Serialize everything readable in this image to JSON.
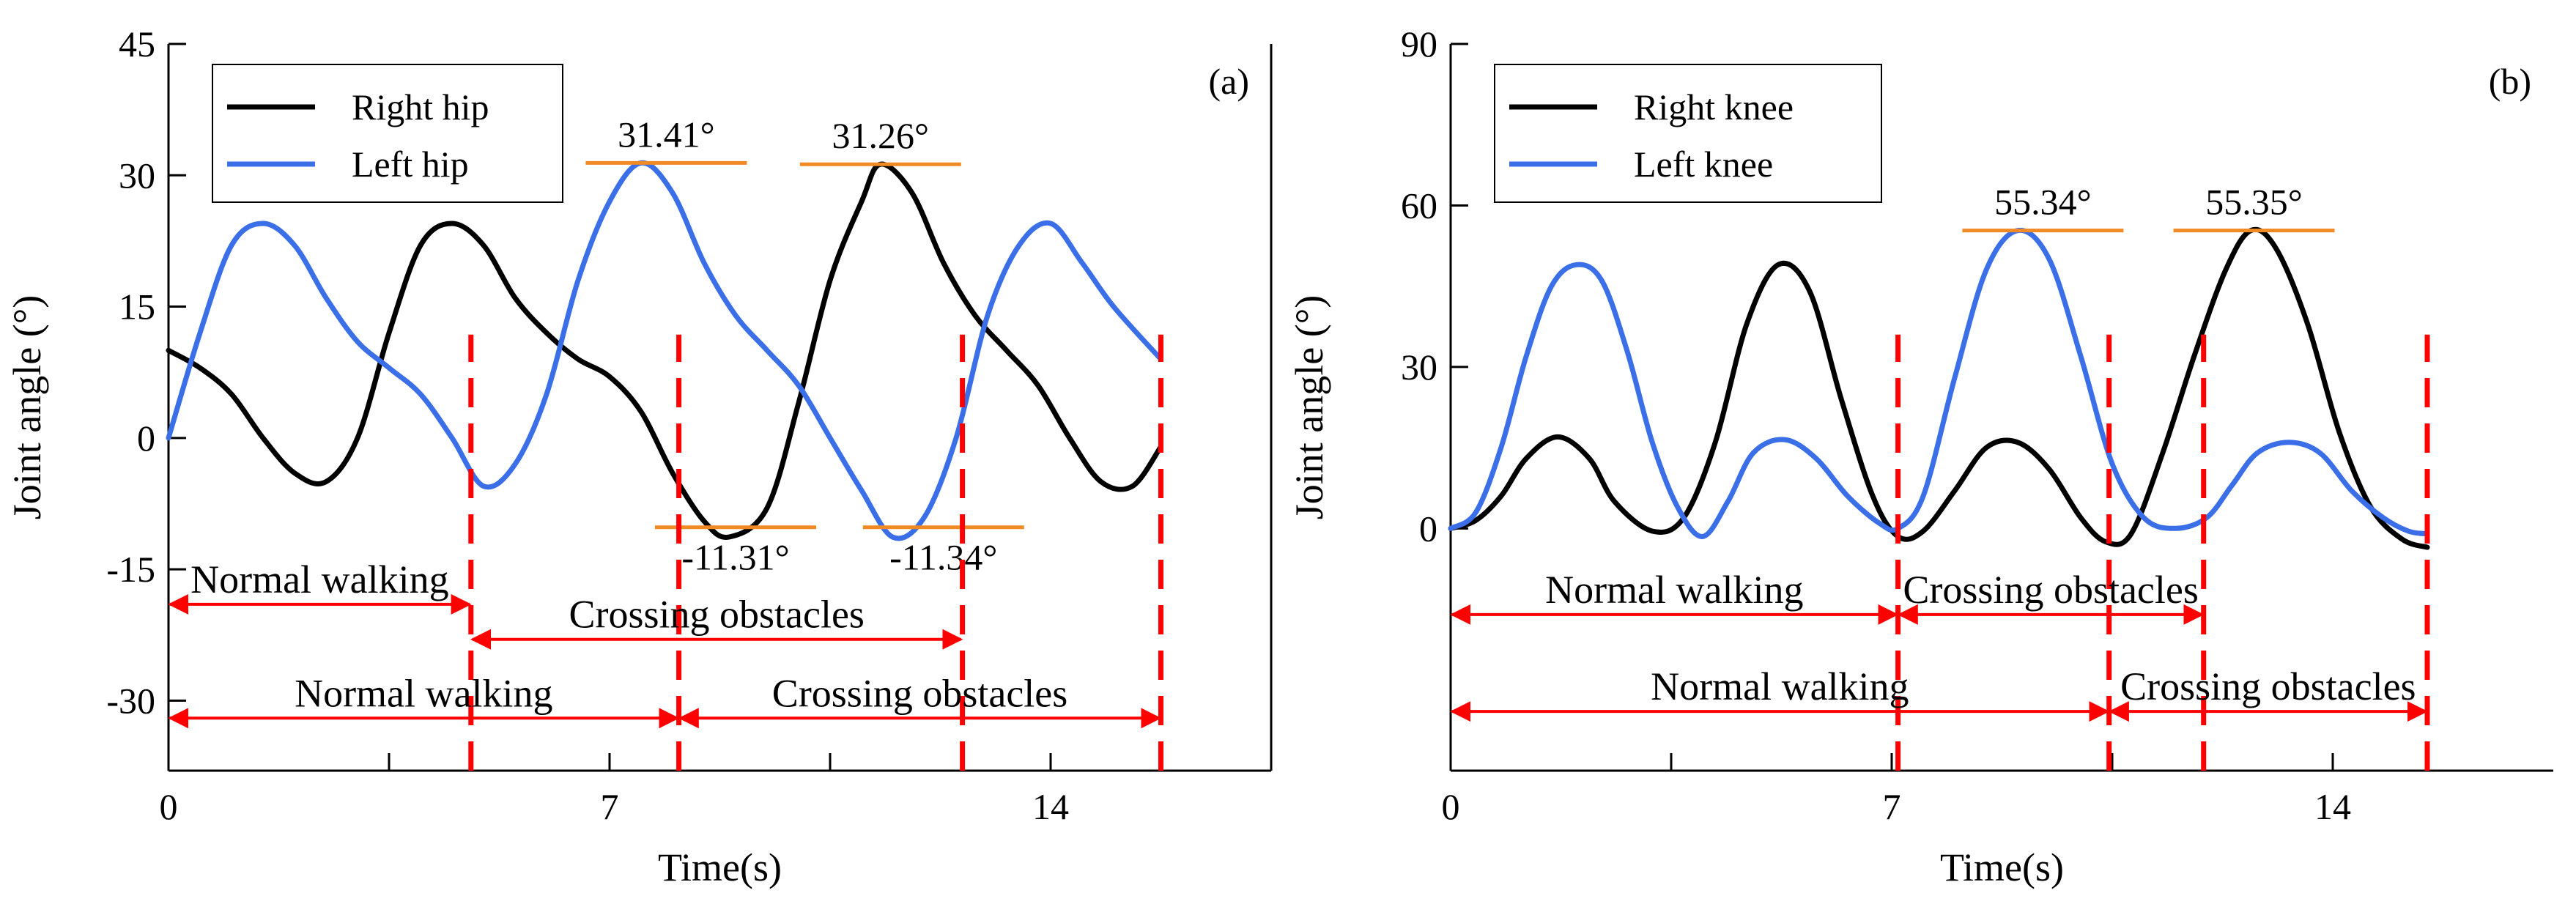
{
  "colors": {
    "right_series": "#000000",
    "left_series": "#3b6fe8",
    "peak_marker": "#f08a24",
    "phase_marker": "#ff0000",
    "axis": "#000000"
  },
  "chart_data": [
    {
      "type": "line",
      "panel_label": "(a)",
      "xlabel": "Time(s)",
      "ylabel": "Joint angle (°)",
      "xlim": [
        0,
        17.5
      ],
      "ylim": [
        -38,
        45
      ],
      "xticks": [
        0,
        3.5,
        7,
        10.5,
        14
      ],
      "xtick_labels": [
        "0",
        "",
        "7",
        "",
        "14"
      ],
      "yticks": [
        -30,
        -15,
        0,
        15,
        30,
        45
      ],
      "ytick_labels": [
        "-30",
        "-15",
        "0",
        "15",
        "30",
        "45"
      ],
      "legend_position": "top-left",
      "series": [
        {
          "name": "Right hip",
          "color_key": "right_series",
          "x": [
            0,
            0.5,
            1.0,
            1.5,
            2.0,
            2.5,
            3.0,
            3.5,
            4.0,
            4.5,
            5.0,
            5.5,
            6.0,
            6.5,
            7.0,
            7.5,
            8.0,
            8.5,
            8.9,
            9.5,
            10.0,
            10.5,
            11.0,
            11.3,
            11.8,
            12.3,
            12.8,
            13.3,
            13.8,
            14.3,
            14.8,
            15.3,
            15.75
          ],
          "values": [
            10,
            8,
            5,
            0,
            -4,
            -5,
            0,
            12,
            22,
            24.5,
            22,
            16,
            12,
            9,
            7,
            3,
            -4,
            -9.5,
            -11.31,
            -8,
            4,
            18,
            27,
            31.26,
            28,
            20,
            14,
            10,
            6,
            0,
            -5,
            -5.5,
            -1
          ]
        },
        {
          "name": "Left hip",
          "color_key": "left_series",
          "x": [
            0,
            0.5,
            1.0,
            1.5,
            2.0,
            2.5,
            3.0,
            3.5,
            4.0,
            4.5,
            5.0,
            5.5,
            6.0,
            6.5,
            7.0,
            7.5,
            8.0,
            8.5,
            9.0,
            9.5,
            10.0,
            10.5,
            11.0,
            11.5,
            12.0,
            12.5,
            13.0,
            13.5,
            14.0,
            14.5,
            15.0,
            15.75
          ],
          "values": [
            0,
            12,
            22,
            24.5,
            22,
            16,
            11,
            8,
            5,
            0,
            -5.5,
            -3,
            5,
            18,
            27,
            31.41,
            28,
            20,
            14,
            10,
            6,
            0,
            -6,
            -11.34,
            -9,
            0,
            14,
            22,
            24.5,
            20,
            15,
            9
          ]
        }
      ],
      "peak_annotations": [
        {
          "x": 7.9,
          "y": 31.41,
          "text": "31.41°",
          "side": "above"
        },
        {
          "x": 11.3,
          "y": 31.26,
          "text": "31.26°",
          "side": "above"
        },
        {
          "x": 9.0,
          "y": -10.2,
          "text": "-11.31°",
          "side": "below"
        },
        {
          "x": 12.3,
          "y": -10.2,
          "text": "-11.34°",
          "side": "below"
        }
      ],
      "phase_lines_x": [
        4.8,
        8.1,
        12.6,
        15.75
      ],
      "phases": [
        {
          "text": "Normal walking",
          "start": 0,
          "end": 4.8,
          "y": -19
        },
        {
          "text": "Crossing obstacles",
          "start": 4.8,
          "end": 12.6,
          "y": -23
        },
        {
          "text": "Normal walking",
          "start": 0,
          "end": 8.1,
          "y": -32
        },
        {
          "text": "Crossing obstacles",
          "start": 8.1,
          "end": 15.75,
          "y": -32
        }
      ]
    },
    {
      "type": "line",
      "panel_label": "(b)",
      "xlabel": "Time(s)",
      "ylabel": "Joint angle (°)",
      "xlim": [
        0,
        17.5
      ],
      "ylim": [
        -45,
        90
      ],
      "xticks": [
        0,
        3.5,
        7,
        10.5,
        14
      ],
      "xtick_labels": [
        "0",
        "",
        "7",
        "",
        "14"
      ],
      "yticks": [
        -45,
        0,
        30,
        60,
        90
      ],
      "ytick_labels": [
        "",
        "0",
        "30",
        "60",
        "90"
      ],
      "legend_position": "top-left",
      "series": [
        {
          "name": "Right knee",
          "color_key": "right_series",
          "x": [
            0,
            0.4,
            0.8,
            1.2,
            1.7,
            2.2,
            2.6,
            3.2,
            3.7,
            4.2,
            4.7,
            5.2,
            5.7,
            6.2,
            6.7,
            7.1,
            7.5,
            8.0,
            8.5,
            9.0,
            9.5,
            10.0,
            10.4,
            10.8,
            11.3,
            11.8,
            12.3,
            12.7,
            13.1,
            13.6,
            14.1,
            14.6,
            15.1,
            15.5
          ],
          "values": [
            0,
            1.5,
            6,
            13,
            17,
            13,
            5,
            -0.5,
            2,
            16,
            38,
            49,
            44,
            24,
            6,
            -1.5,
            -0.5,
            7,
            15,
            16,
            11,
            2,
            -2.5,
            -1,
            14,
            32,
            48,
            55.35,
            52,
            38,
            18,
            4,
            -2,
            -3.5
          ]
        },
        {
          "name": "Left knee",
          "color_key": "left_series",
          "x": [
            0,
            0.4,
            0.8,
            1.2,
            1.6,
            2.0,
            2.4,
            2.8,
            3.2,
            3.6,
            4.0,
            4.4,
            4.8,
            5.3,
            5.8,
            6.3,
            6.8,
            7.1,
            7.5,
            8.0,
            8.5,
            9.0,
            9.5,
            10.0,
            10.5,
            11.0,
            11.5,
            12.0,
            12.4,
            12.8,
            13.3,
            13.8,
            14.3,
            14.8,
            15.2,
            15.5
          ],
          "values": [
            0,
            3,
            15,
            32,
            45,
            49,
            46,
            33,
            16,
            4,
            -1.5,
            5,
            14,
            16.5,
            13,
            6,
            1,
            0,
            6,
            28,
            48,
            55.34,
            50,
            32,
            12,
            2,
            0,
            2,
            8,
            14,
            16,
            14,
            7,
            2,
            -0.5,
            -1
          ]
        }
      ],
      "peak_annotations": [
        {
          "x": 9.4,
          "y": 55.34,
          "text": "55.34°",
          "side": "above"
        },
        {
          "x": 12.75,
          "y": 55.35,
          "text": "55.35°",
          "side": "above"
        }
      ],
      "phase_lines_x": [
        7.1,
        10.45,
        11.95,
        15.5
      ],
      "phases": [
        {
          "text": "Normal walking",
          "start": 0,
          "end": 7.1,
          "y": -16
        },
        {
          "text": "Crossing obstacles",
          "start": 7.1,
          "end": 11.95,
          "y": -16
        },
        {
          "text": "Normal walking",
          "start": 0,
          "end": 10.45,
          "y": -34
        },
        {
          "text": "Crossing obstacles",
          "start": 10.45,
          "end": 15.5,
          "y": -34
        }
      ]
    }
  ]
}
